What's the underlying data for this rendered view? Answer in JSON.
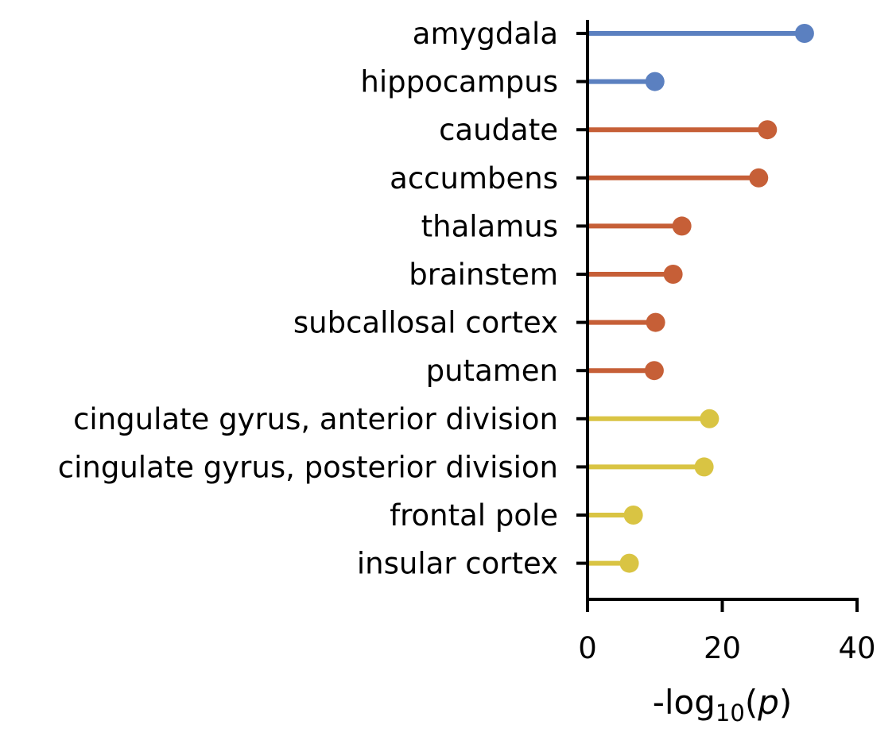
{
  "chart_data": {
    "type": "lollipop",
    "orientation": "horizontal",
    "xlabel": "-log10(p)",
    "xlabel_parts": {
      "prefix": "-log",
      "subscript": "10",
      "open": "(",
      "var": "p",
      "close": ")"
    },
    "xlim": [
      0,
      40
    ],
    "xticks": [
      0,
      20,
      40
    ],
    "xtick_labels": [
      "0",
      "20",
      "40"
    ],
    "categories": [
      "amygdala",
      "hippocampus",
      "caudate",
      "accumbens",
      "thalamus",
      "brainstem",
      "subcallosal cortex",
      "putamen",
      "cingulate gyrus, anterior division",
      "cingulate gyrus, posterior division",
      "frontal pole",
      "insular cortex"
    ],
    "values": [
      32.2,
      10.0,
      26.7,
      25.4,
      14.0,
      12.7,
      10.1,
      9.9,
      18.1,
      17.3,
      6.8,
      6.2
    ],
    "colors": [
      "#5b80c0",
      "#5b80c0",
      "#c65f37",
      "#c65f37",
      "#c65f37",
      "#c65f37",
      "#c65f37",
      "#c65f37",
      "#d9c443",
      "#d9c443",
      "#d9c443",
      "#d9c443"
    ],
    "grid": false,
    "legend": "none"
  }
}
